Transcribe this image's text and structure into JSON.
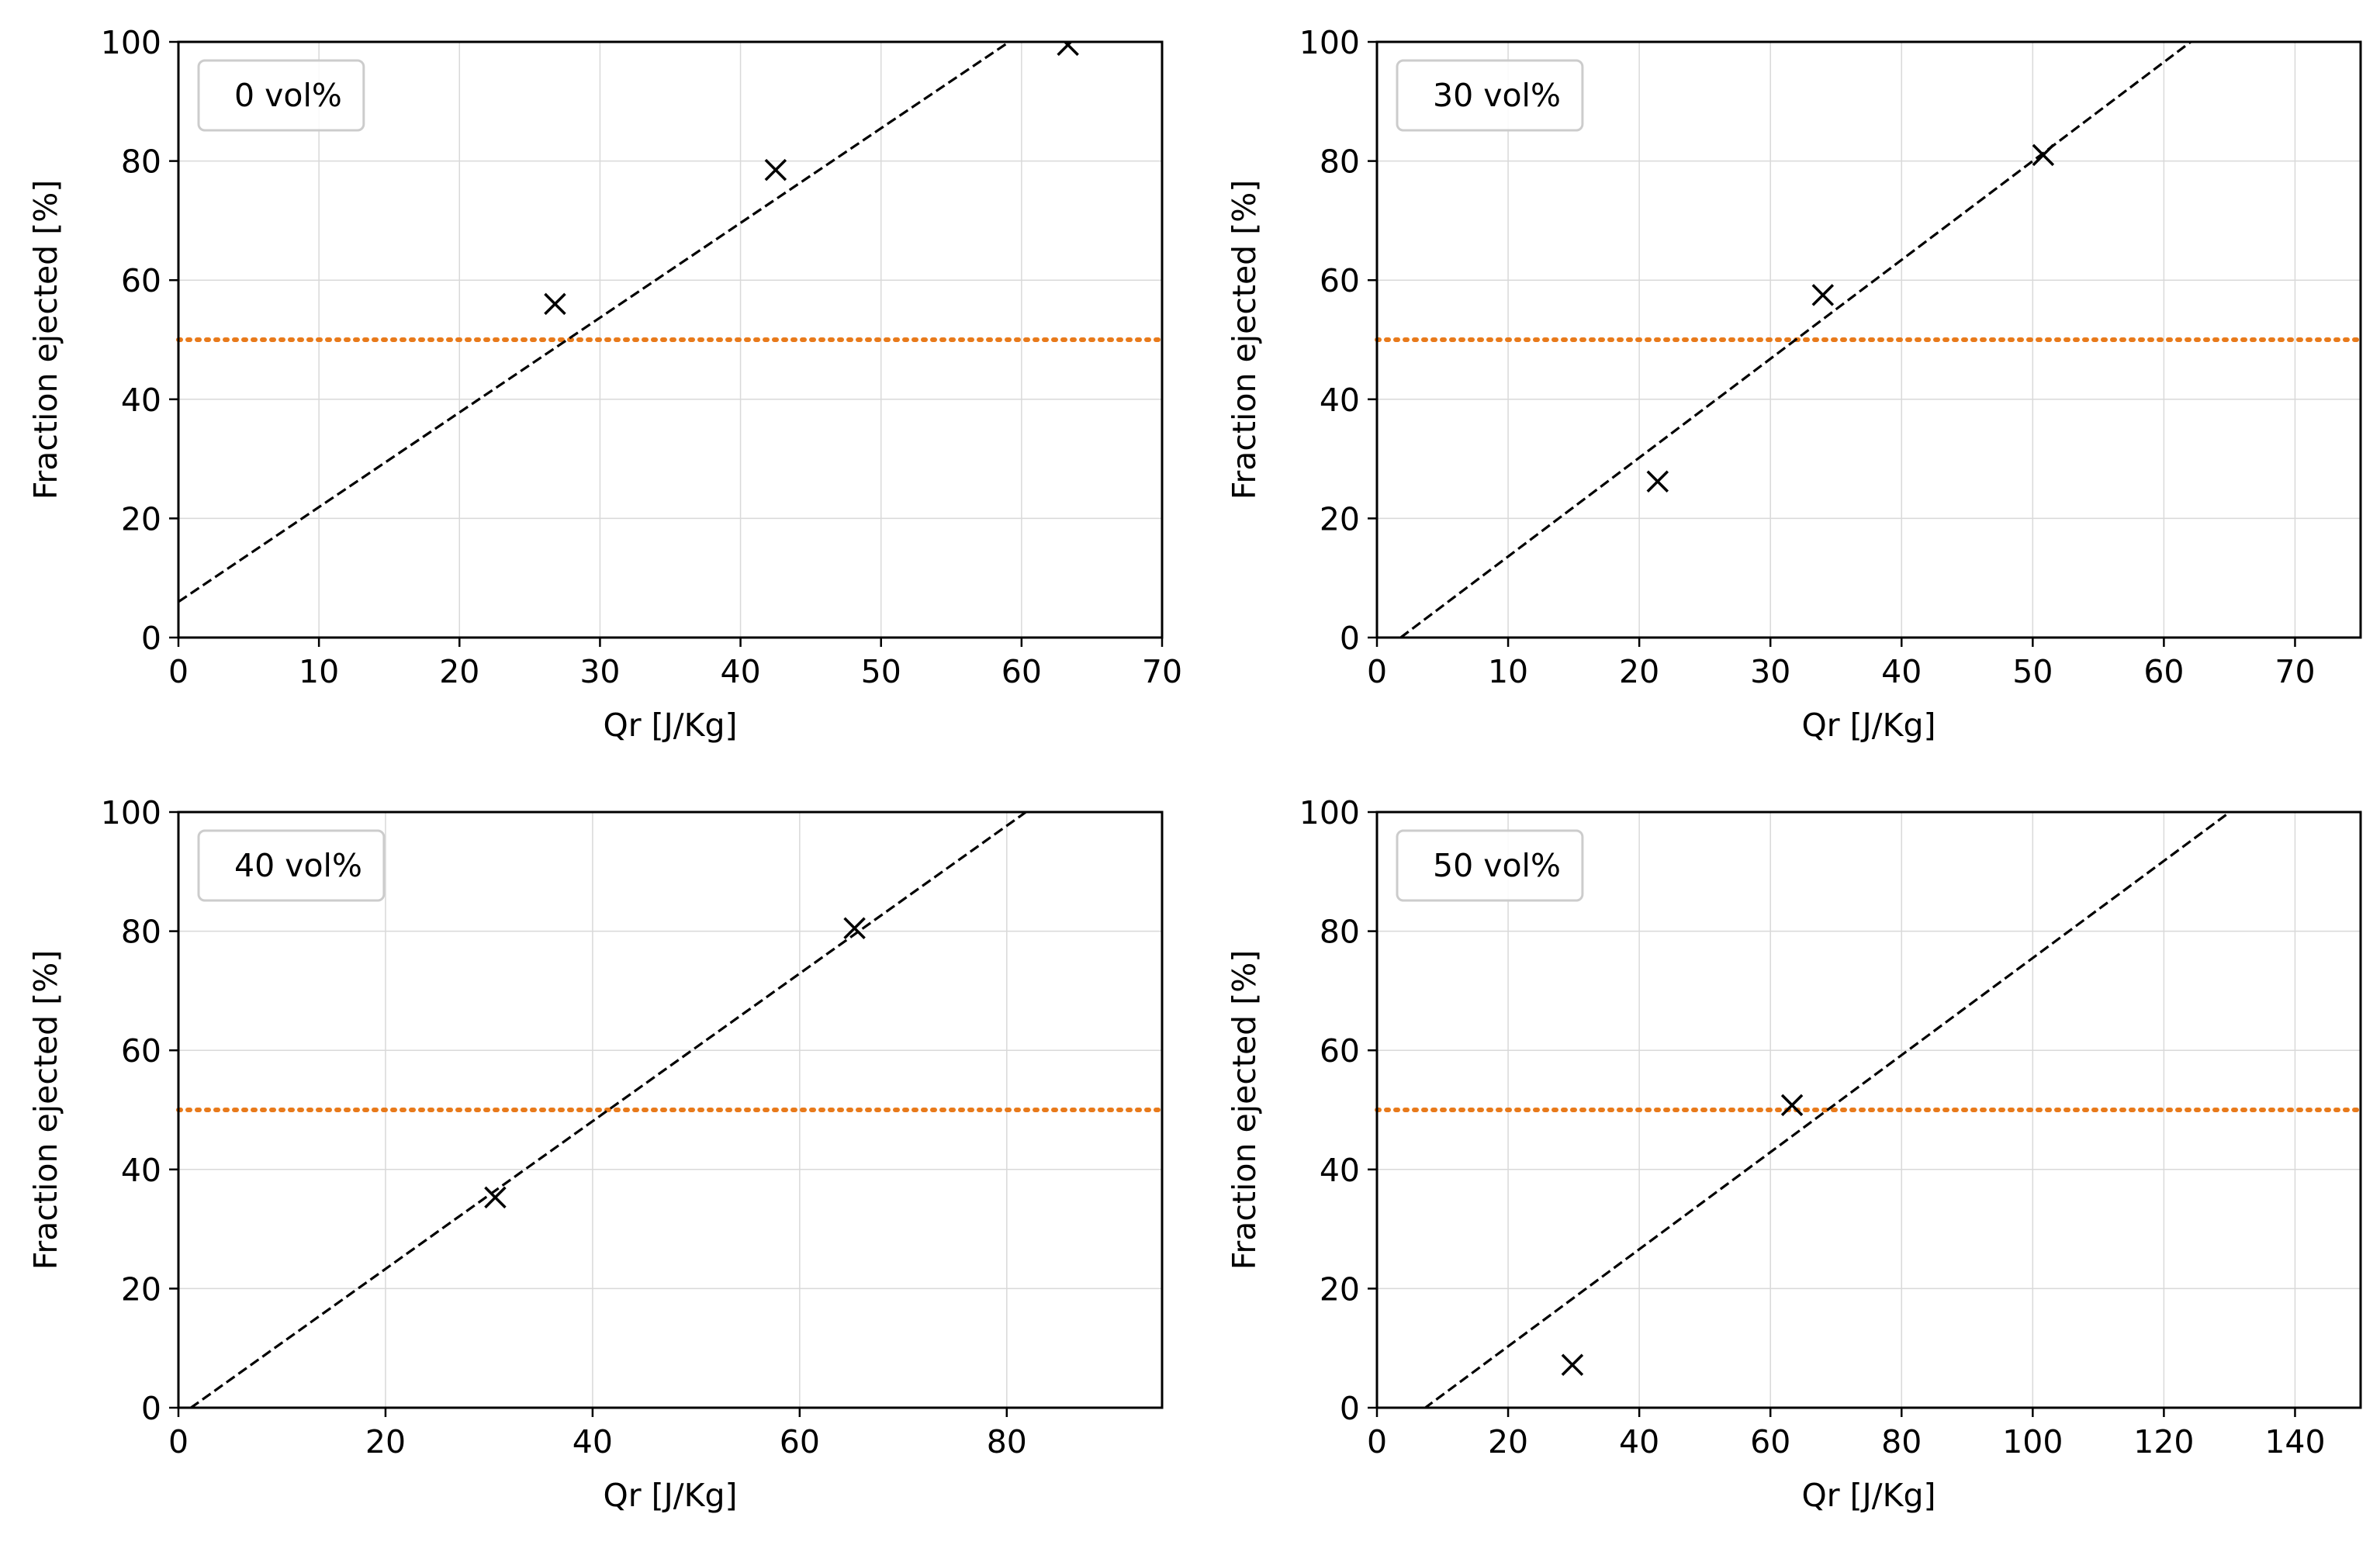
{
  "chart_data": [
    {
      "type": "scatter",
      "legend": "0 vol%",
      "xlabel": "Qr [J/Kg]",
      "ylabel": "Fraction ejected [%]",
      "xlim": [
        0,
        70
      ],
      "ylim": [
        0,
        100
      ],
      "xticks": [
        0,
        10,
        20,
        30,
        40,
        50,
        60,
        70
      ],
      "yticks": [
        0,
        20,
        40,
        60,
        80,
        100
      ],
      "grid": true,
      "legend_position": "top-left",
      "points": [
        {
          "x": 26.8,
          "y": 56
        },
        {
          "x": 42.5,
          "y": 78.5
        },
        {
          "x": 63.3,
          "y": 99.5
        }
      ],
      "fit_line": {
        "slope": 1.59,
        "intercept": 6.0
      },
      "threshold": 50,
      "colors": {
        "marker": "#000000",
        "fit": "#000000",
        "threshold": "#e87a1b",
        "grid": "#d9d9d9"
      }
    },
    {
      "type": "scatter",
      "legend": "30 vol%",
      "xlabel": "Qr [J/Kg]",
      "ylabel": "Fraction ejected [%]",
      "xlim": [
        0,
        75
      ],
      "ylim": [
        0,
        100
      ],
      "xticks": [
        0,
        10,
        20,
        30,
        40,
        50,
        60,
        70
      ],
      "yticks": [
        0,
        20,
        40,
        60,
        80,
        100
      ],
      "grid": true,
      "legend_position": "top-left",
      "points": [
        {
          "x": 21.4,
          "y": 26.2
        },
        {
          "x": 34.0,
          "y": 57.5
        },
        {
          "x": 50.8,
          "y": 81.0
        }
      ],
      "fit_line": {
        "slope": 1.66,
        "intercept": -3.0
      },
      "threshold": 50,
      "colors": {
        "marker": "#000000",
        "fit": "#000000",
        "threshold": "#e87a1b",
        "grid": "#d9d9d9"
      }
    },
    {
      "type": "scatter",
      "legend": "40 vol%",
      "xlabel": "Qr [J/Kg]",
      "ylabel": "Fraction ejected [%]",
      "xlim": [
        0,
        95
      ],
      "ylim": [
        0,
        100
      ],
      "xticks": [
        0,
        20,
        40,
        60,
        80
      ],
      "yticks": [
        0,
        20,
        40,
        60,
        80,
        100
      ],
      "grid": true,
      "legend_position": "top-left",
      "points": [
        {
          "x": 30.6,
          "y": 35.3
        },
        {
          "x": 65.3,
          "y": 80.5
        }
      ],
      "fit_line": {
        "slope": 1.24,
        "intercept": -1.5
      },
      "threshold": 50,
      "colors": {
        "marker": "#000000",
        "fit": "#000000",
        "threshold": "#e87a1b",
        "grid": "#d9d9d9"
      }
    },
    {
      "type": "scatter",
      "legend": "50 vol%",
      "xlabel": "Qr [J/Kg]",
      "ylabel": "Fraction ejected [%]",
      "xlim": [
        0,
        150
      ],
      "ylim": [
        0,
        100
      ],
      "xticks": [
        0,
        20,
        40,
        60,
        80,
        100,
        120,
        140
      ],
      "yticks": [
        0,
        20,
        40,
        60,
        80,
        100
      ],
      "grid": true,
      "legend_position": "top-left",
      "points": [
        {
          "x": 29.8,
          "y": 7.2
        },
        {
          "x": 63.3,
          "y": 50.8
        }
      ],
      "fit_line": {
        "slope": 0.815,
        "intercept": -6.0
      },
      "threshold": 50,
      "colors": {
        "marker": "#000000",
        "fit": "#000000",
        "threshold": "#e87a1b",
        "grid": "#d9d9d9"
      }
    }
  ]
}
